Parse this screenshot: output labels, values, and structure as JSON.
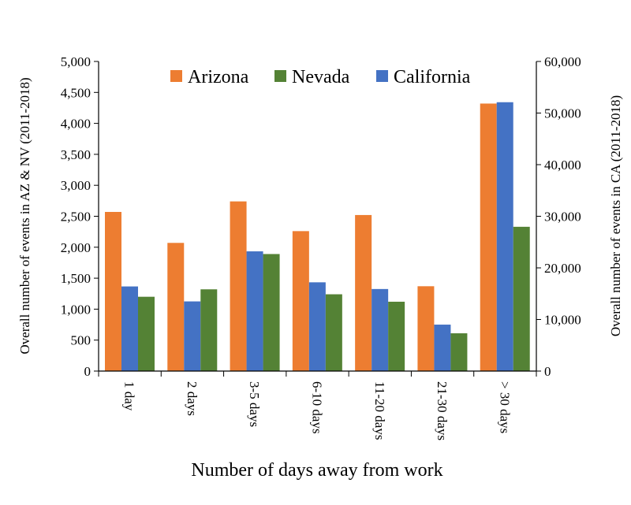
{
  "colors": {
    "Arizona": "#ED7D31",
    "Nevada": "#548235",
    "California": "#4472C4"
  },
  "chart_data": {
    "type": "bar",
    "title": "",
    "xlabel": "Number of days away from work",
    "ylabel_left": "Overall number of events in AZ & NV (2011-2018)",
    "ylabel_right": "Overall number of events in CA (2011-2018)",
    "categories": [
      "1 day",
      "2 days",
      "3-5 days",
      "6-10 days",
      "11-20 days",
      "21-30 days",
      "> 30 days"
    ],
    "ylim_left": [
      0,
      5000
    ],
    "ylim_right": [
      0,
      60000
    ],
    "yticks_left": [
      "0",
      "500",
      "1,000",
      "1,500",
      "2,000",
      "2,500",
      "3,000",
      "3,500",
      "4,000",
      "4,500",
      "5,000"
    ],
    "yticks_right": [
      "0",
      "10,000",
      "20,000",
      "30,000",
      "40,000",
      "50,000",
      "60,000"
    ],
    "legend_position": "top",
    "grid": false,
    "series": [
      {
        "name": "Arizona",
        "axis": "left",
        "values": [
          2570,
          2070,
          2740,
          2260,
          2520,
          1370,
          4320
        ]
      },
      {
        "name": "California",
        "axis": "right",
        "values": [
          16400,
          13500,
          23200,
          17200,
          15900,
          9000,
          52100
        ]
      },
      {
        "name": "Nevada",
        "axis": "left",
        "values": [
          1200,
          1320,
          1890,
          1240,
          1120,
          610,
          2330
        ]
      }
    ],
    "legend": [
      "Arizona",
      "Nevada",
      "California"
    ]
  }
}
